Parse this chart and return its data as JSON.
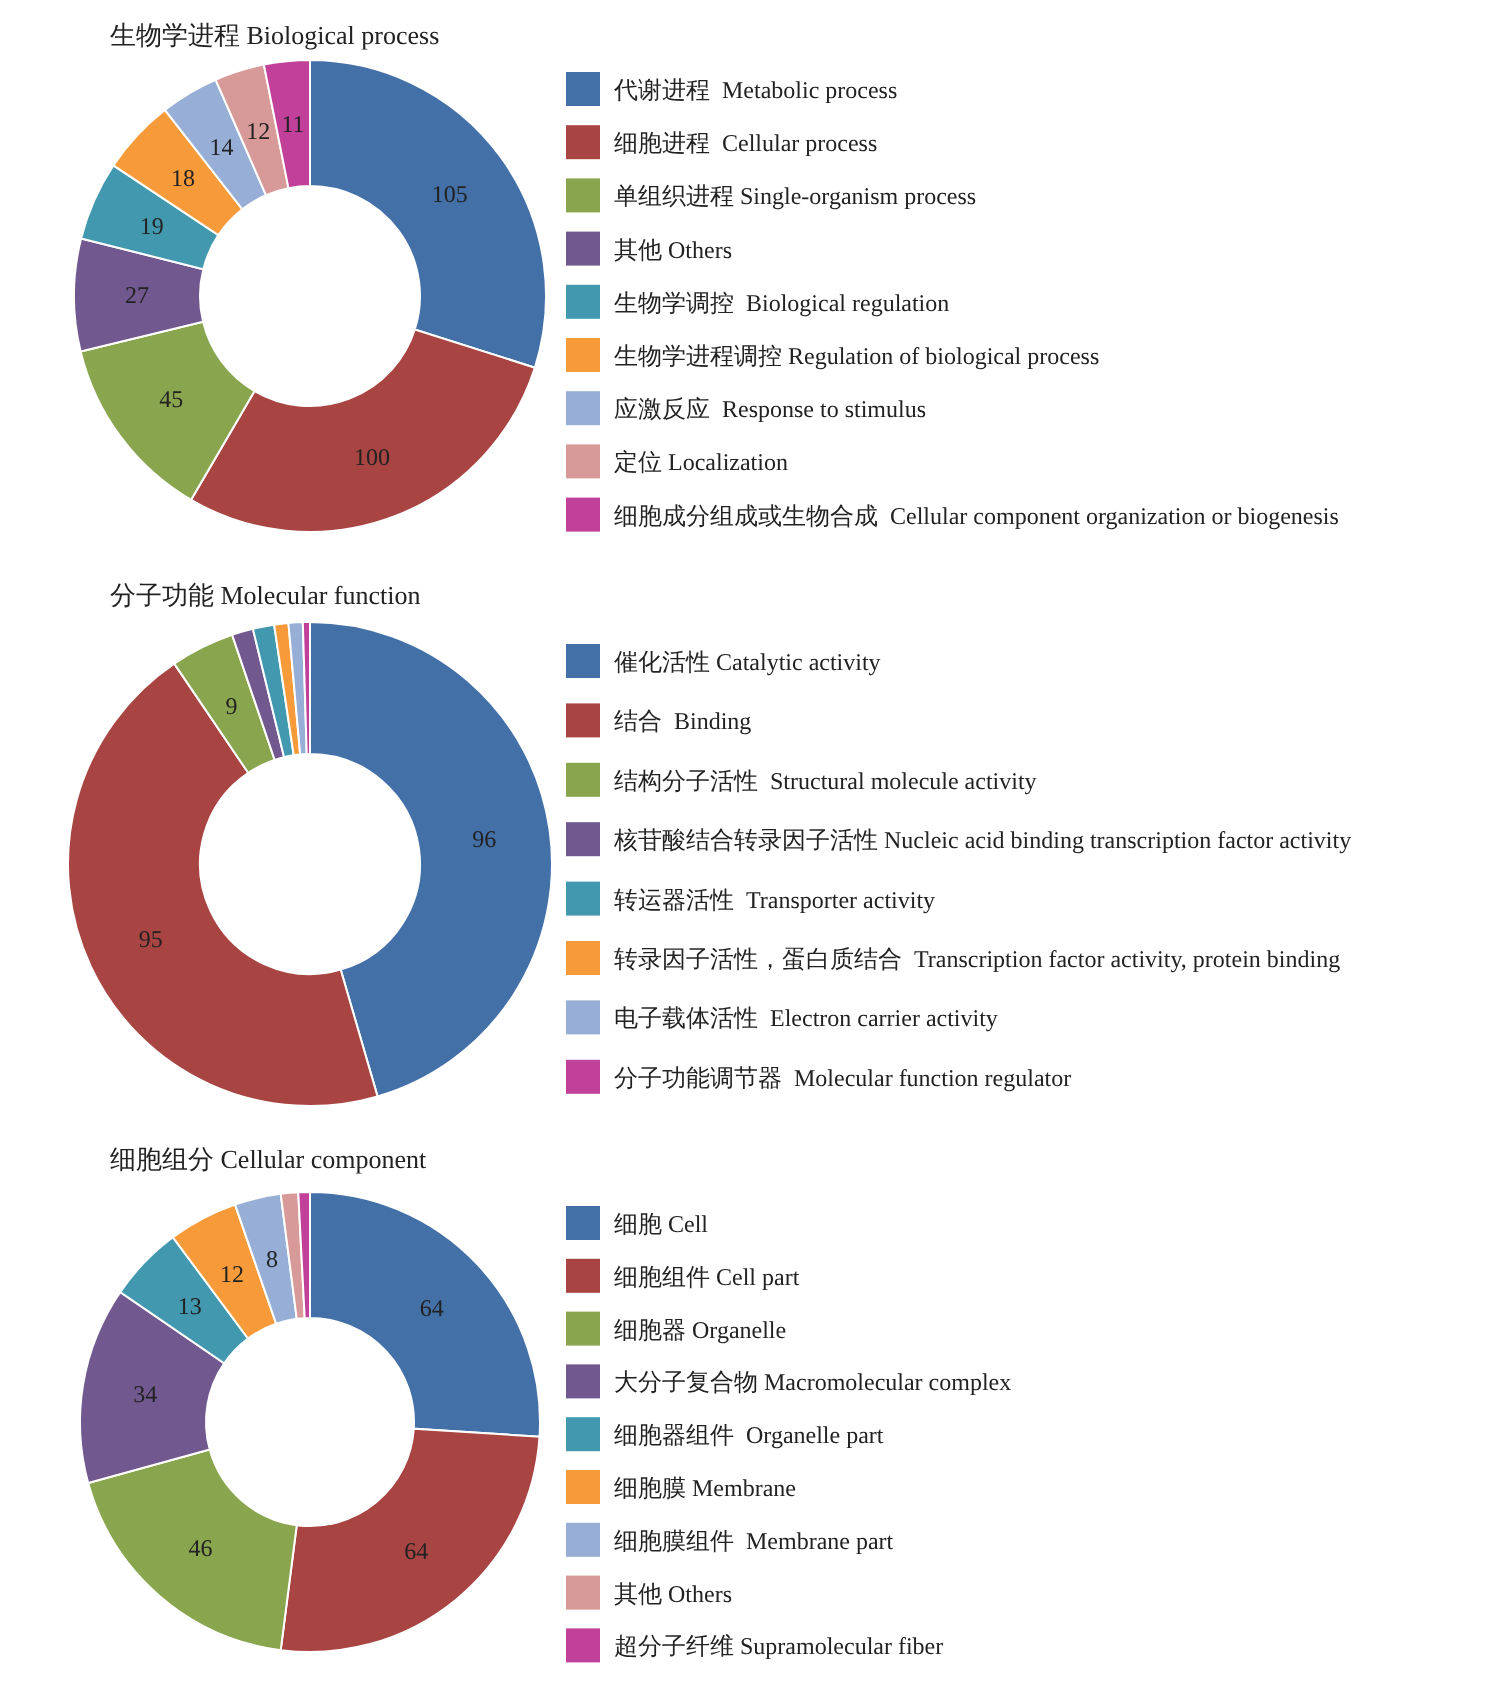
{
  "chart_data": [
    {
      "type": "donut",
      "title": "生物学进程 Biological process",
      "legend": "right",
      "data_labels": true,
      "categories": [
        "代谢进程  Metabolic process",
        "细胞进程  Cellular process",
        "单组织进程 Single-organism process",
        "其他 Others",
        "生物学调控  Biological regulation",
        "生物学进程调控 Regulation of biological process",
        "应激反应  Response to stimulus",
        "定位 Localization",
        "细胞成分组成或生物合成  Cellular component organization or biogenesis"
      ],
      "values": [
        105,
        100,
        45,
        27,
        19,
        18,
        14,
        12,
        11
      ],
      "colors": [
        "#4470a8",
        "#a84442",
        "#89a54e",
        "#71588f",
        "#4198af",
        "#f79b3a",
        "#97aed6",
        "#d89a99",
        "#c0409a"
      ]
    },
    {
      "type": "donut",
      "title": "分子功能 Molecular function",
      "legend": "right",
      "categories": [
        "催化活性 Catalytic activity",
        "结合  Binding",
        "结构分子活性  Structural molecule activity",
        "核苷酸结合转录因子活性 Nucleic acid binding transcription factor activity",
        "转运器活性  Transporter activity",
        "转录因子活性，蛋白质结合  Transcription factor activity, protein binding",
        "电子载体活性  Electron carrier activity",
        "分子功能调节器  Molecular function regulator"
      ],
      "values": [
        96,
        95,
        9,
        3,
        3,
        2,
        2,
        1
      ],
      "value_labels": [
        "96",
        "95",
        "9",
        null,
        null,
        null,
        null,
        null
      ],
      "colors": [
        "#4470a8",
        "#a84442",
        "#89a54e",
        "#71588f",
        "#4198af",
        "#f79b3a",
        "#97aed6",
        "#c0409a"
      ]
    },
    {
      "type": "donut",
      "title": "细胞组分 Cellular component",
      "legend": "right",
      "categories": [
        "细胞 Cell",
        "细胞组件 Cell part",
        "细胞器 Organelle",
        "大分子复合物 Macromolecular complex",
        "细胞器组件  Organelle part",
        "细胞膜 Membrane",
        "细胞膜组件  Membrane part",
        "其他 Others",
        "超分子纤维 Supramolecular fiber"
      ],
      "values": [
        64,
        64,
        46,
        34,
        13,
        12,
        8,
        3,
        2
      ],
      "value_labels": [
        "64",
        "64",
        "46",
        "34",
        "13",
        "12",
        "8",
        null,
        null
      ],
      "colors": [
        "#4470a8",
        "#a84442",
        "#89a54e",
        "#71588f",
        "#4198af",
        "#f79b3a",
        "#97aed6",
        "#d89a99",
        "#c0409a"
      ]
    }
  ]
}
